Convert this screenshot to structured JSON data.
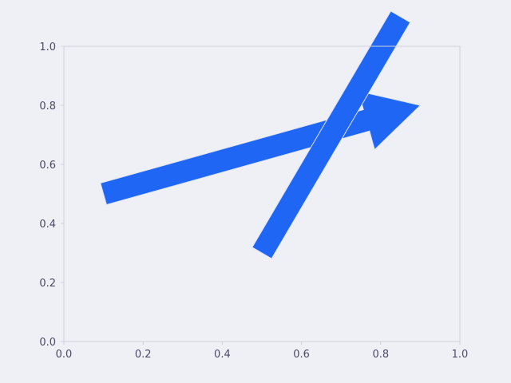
{
  "chart_data": {
    "type": "arrow_annotations",
    "title": "",
    "xlabel": "",
    "ylabel": "",
    "xlim": [
      0.0,
      1.0
    ],
    "ylim": [
      0.0,
      1.0
    ],
    "x_ticks": [
      "0.0",
      "0.2",
      "0.4",
      "0.6",
      "0.8",
      "1.0"
    ],
    "y_ticks": [
      "0.0",
      "0.2",
      "0.4",
      "0.6",
      "0.8",
      "1.0"
    ],
    "grid": false,
    "colors": {
      "arrow_fill": "#1f66f5",
      "background": "#eff0f5",
      "axis": "#cfd1da",
      "tick_text": "#4a4a66"
    },
    "arrows": [
      {
        "name": "",
        "x": 0.1,
        "y": 0.5,
        "dx": 0.8,
        "dy": 0.3,
        "has_head": true
      },
      {
        "name": "",
        "x": 0.5,
        "y": 0.3,
        "dx": 0.35,
        "dy": 0.8,
        "has_head": false
      }
    ]
  }
}
